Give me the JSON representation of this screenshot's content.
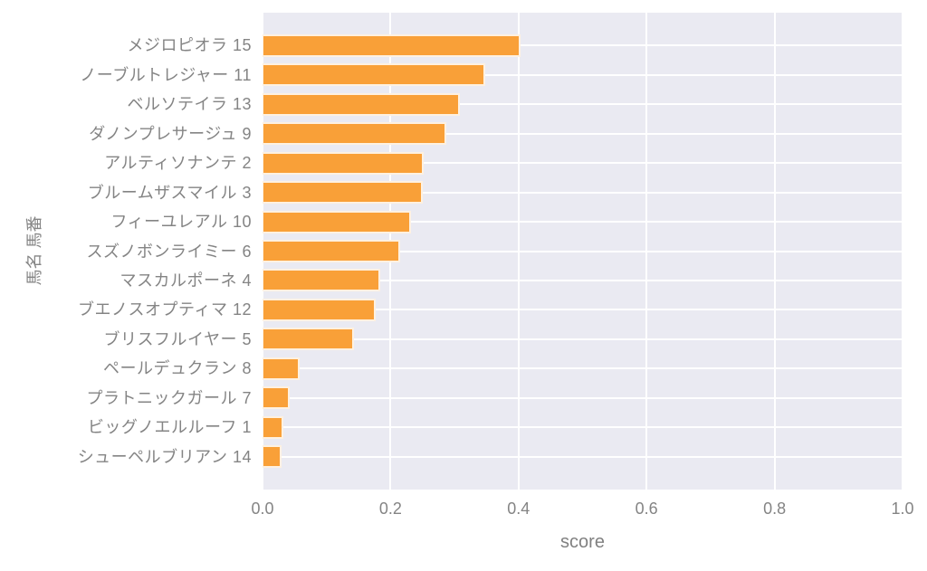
{
  "figure": {
    "background_color": "#ffffff",
    "plot_background_color": "#EAEAF2",
    "grid_color": "#ffffff",
    "bar_color": "#F9A038",
    "bar_edge_color": "#ffffff",
    "text_color": "#848484"
  },
  "chart_data": {
    "type": "bar",
    "orientation": "horizontal",
    "title": "",
    "xlabel": "score",
    "ylabel": "馬名 馬番",
    "xlim": [
      0.0,
      1.0
    ],
    "grid": true,
    "legend": false,
    "xticks": [
      "0.0",
      "0.2",
      "0.4",
      "0.6",
      "0.8",
      "1.0"
    ],
    "xtick_values": [
      0.0,
      0.2,
      0.4,
      0.6,
      0.8,
      1.0
    ],
    "categories": [
      "メジロピオラ 15",
      "ノーブルトレジャー 11",
      "ベルソテイラ 13",
      "ダノンプレサージュ 9",
      "アルティソナンテ 2",
      "ブルームザスマイル 3",
      "フィーユレアル 10",
      "スズノボンライミー 6",
      "マスカルポーネ 4",
      "ブエノスオプティマ 12",
      "ブリスフルイヤー 5",
      "ペールデュクラン 8",
      "プラトニックガール 7",
      "ビッグノエルルーフ 1",
      "シューペルブリアン 14"
    ],
    "values": [
      0.403,
      0.348,
      0.308,
      0.287,
      0.252,
      0.25,
      0.232,
      0.215,
      0.184,
      0.177,
      0.143,
      0.058,
      0.043,
      0.032,
      0.03
    ]
  }
}
